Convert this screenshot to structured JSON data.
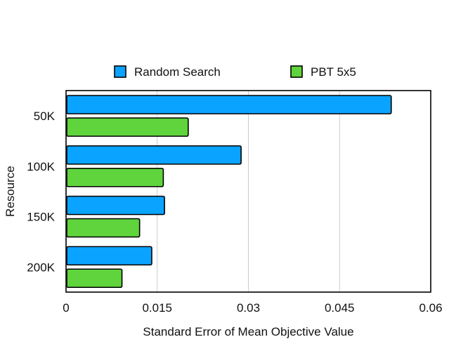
{
  "chart_data": {
    "type": "bar",
    "orientation": "horizontal",
    "title": "",
    "xlabel": "Standard Error of Mean Objective Value",
    "ylabel": "Resource",
    "categories": [
      "50K",
      "100K",
      "150K",
      "200K"
    ],
    "series": [
      {
        "name": "Random Search",
        "color": "#0aa3ff",
        "values": [
          0.0535,
          0.0288,
          0.0162,
          0.0141
        ]
      },
      {
        "name": "PBT 5x5",
        "color": "#5fd43c",
        "values": [
          0.0201,
          0.016,
          0.0121,
          0.0092
        ]
      }
    ],
    "xlim": [
      0,
      0.06
    ],
    "xticks": [
      "0",
      "0.015",
      "0.03",
      "0.045",
      "0.06"
    ],
    "xtick_values": [
      0,
      0.015,
      0.03,
      0.045,
      0.06
    ],
    "grid": "vertical",
    "legend_position": "top"
  }
}
